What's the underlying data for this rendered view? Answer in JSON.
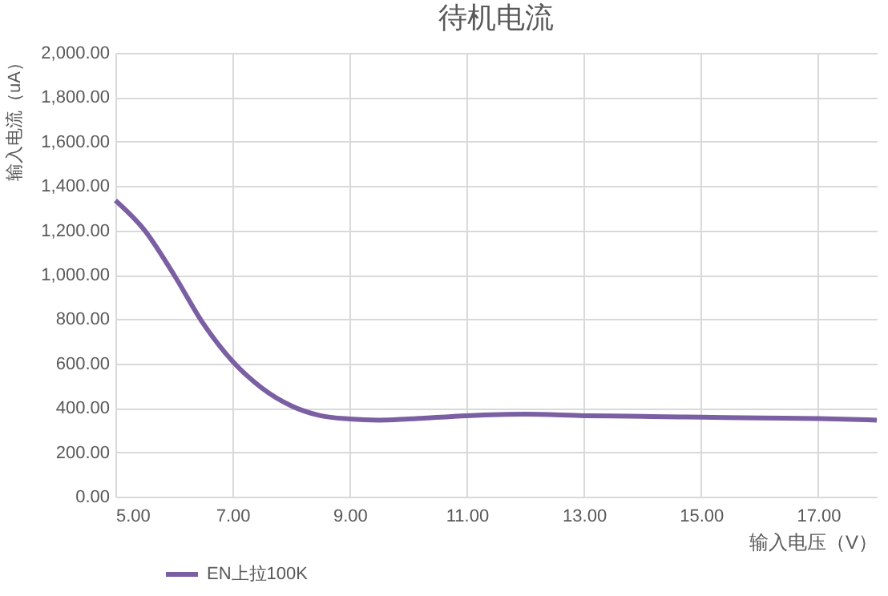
{
  "chart_data": {
    "type": "line",
    "title": "待机电流",
    "xlabel": "输入电压（V）",
    "ylabel": "输入电流（uA）",
    "x": [
      5,
      5.5,
      6,
      6.5,
      7,
      7.5,
      8,
      8.5,
      9,
      9.5,
      10,
      11,
      12,
      13,
      14,
      15,
      16,
      17,
      18
    ],
    "series": [
      {
        "name": "EN上拉100K",
        "color": "#7b5fa3",
        "values": [
          1335,
          1200,
          1000,
          780,
          610,
          490,
          410,
          365,
          350,
          345,
          350,
          365,
          372,
          365,
          362,
          358,
          355,
          352,
          345
        ]
      }
    ],
    "xlim": [
      5,
      18
    ],
    "xticks": [
      {
        "value": 5,
        "label": "5.00"
      },
      {
        "value": 7,
        "label": "7.00"
      },
      {
        "value": 9,
        "label": "9.00"
      },
      {
        "value": 11,
        "label": "11.00"
      },
      {
        "value": 13,
        "label": "13.00"
      },
      {
        "value": 15,
        "label": "15.00"
      },
      {
        "value": 17,
        "label": "17.00"
      }
    ],
    "ylim": [
      0,
      2000
    ],
    "yticks": [
      {
        "value": 0,
        "label": "0.00"
      },
      {
        "value": 200,
        "label": "200.00"
      },
      {
        "value": 400,
        "label": "400.00"
      },
      {
        "value": 600,
        "label": "600.00"
      },
      {
        "value": 800,
        "label": "800.00"
      },
      {
        "value": 1000,
        "label": "1,000.00"
      },
      {
        "value": 1200,
        "label": "1,200.00"
      },
      {
        "value": 1400,
        "label": "1,400.00"
      },
      {
        "value": 1600,
        "label": "1,600.00"
      },
      {
        "value": 1800,
        "label": "1,800.00"
      },
      {
        "value": 2000,
        "label": "2,000.00"
      }
    ],
    "grid": true,
    "legend": "bottom left"
  }
}
